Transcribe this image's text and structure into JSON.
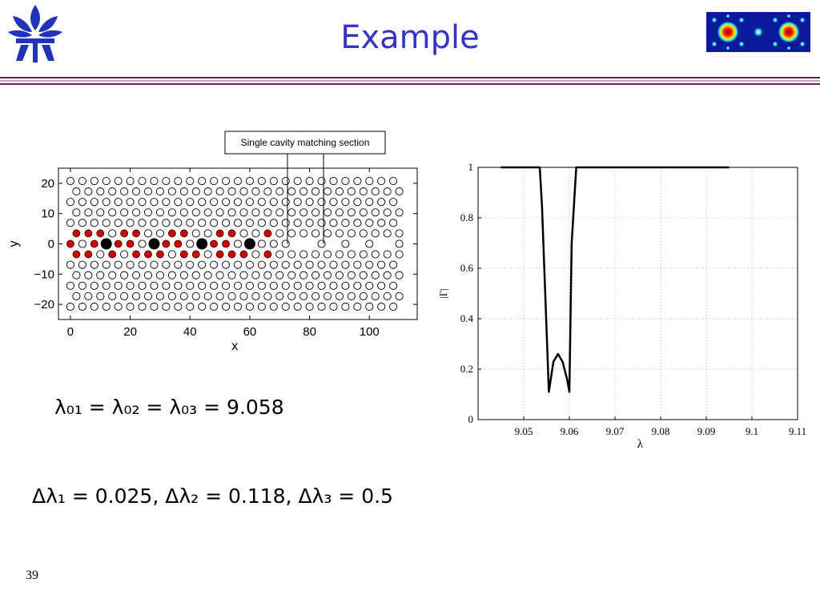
{
  "slide": {
    "title": "Example",
    "page_number": "39",
    "colors": {
      "title": "#3333cc",
      "rule_dark": "#6b1a55",
      "rule_light": "#c9a0c0"
    },
    "logo_icon": "university-emblem-icon",
    "thumbnail_icon": "field-intensity-thumbnail-icon"
  },
  "equations": {
    "eq1": "λ₀₁ = λ₀₂ = λ₀₃ = 9.058",
    "eq2": "Δλ₁ = 0.025, Δλ₂ = 0.118, Δλ₃ = 0.5"
  },
  "chart_data": [
    {
      "type": "scatter",
      "annotation": "Single cavity matching section",
      "xlabel": "x",
      "ylabel": "y",
      "xlim": [
        -4,
        116
      ],
      "ylim": [
        -25,
        25
      ],
      "x_ticks": [
        0,
        20,
        40,
        60,
        80,
        100
      ],
      "y_ticks": [
        20,
        10,
        0,
        -10,
        -20
      ],
      "x_tick_labels": [
        "0",
        "20",
        "40",
        "60",
        "80",
        "100"
      ],
      "y_tick_labels": [
        "20",
        "10",
        "0",
        "−10",
        "−20"
      ],
      "grid": false,
      "series": [
        {
          "marker": "open circles",
          "color": "#000000",
          "points": "hexagonal hole lattice, pitch 4, row spacing 3.46, waveguide row y=0"
        },
        {
          "marker": "filled red circles",
          "color": "#cc0000",
          "points": [
            [
              2,
              3.46
            ],
            [
              6,
              3.46
            ],
            [
              10,
              3.46
            ],
            [
              18,
              3.46
            ],
            [
              22,
              3.46
            ],
            [
              34,
              3.46
            ],
            [
              38,
              3.46
            ],
            [
              50,
              3.46
            ],
            [
              54,
              3.46
            ],
            [
              66,
              3.46
            ],
            [
              0,
              0
            ],
            [
              8,
              0
            ],
            [
              16,
              0
            ],
            [
              20,
              0
            ],
            [
              32,
              0
            ],
            [
              36,
              0
            ],
            [
              48,
              0
            ],
            [
              52,
              0
            ],
            [
              2,
              -3.46
            ],
            [
              6,
              -3.46
            ],
            [
              14,
              -3.46
            ],
            [
              22,
              -3.46
            ],
            [
              26,
              -3.46
            ],
            [
              30,
              -3.46
            ],
            [
              38,
              -3.46
            ],
            [
              42,
              -3.46
            ],
            [
              50,
              -3.46
            ],
            [
              54,
              -3.46
            ],
            [
              58,
              -3.46
            ],
            [
              66,
              -3.46
            ]
          ]
        },
        {
          "marker": "large black circles",
          "color": "#000000",
          "points": [
            [
              12,
              0
            ],
            [
              28,
              0
            ],
            [
              44,
              0
            ],
            [
              60,
              0
            ]
          ]
        }
      ]
    },
    {
      "type": "line",
      "xlabel": "λ",
      "ylabel": "|Γ|",
      "xlim": [
        9.04,
        9.11
      ],
      "ylim": [
        0,
        1
      ],
      "x_ticks": [
        9.05,
        9.06,
        9.07,
        9.08,
        9.09,
        9.1,
        9.11
      ],
      "y_ticks": [
        0,
        0.2,
        0.4,
        0.6,
        0.8,
        1
      ],
      "x_tick_labels": [
        "9.05",
        "9.06",
        "9.07",
        "9.08",
        "9.09",
        "9.1",
        "9.11"
      ],
      "y_tick_labels": [
        "0",
        "0.2",
        "0.4",
        "0.6",
        "0.8",
        "1"
      ],
      "grid": true,
      "x": [
        9.045,
        9.052,
        9.0535,
        9.054,
        9.0545,
        9.0555,
        9.0565,
        9.0575,
        9.0585,
        9.0595,
        9.06,
        9.0605,
        9.0615,
        9.062,
        9.075,
        9.095
      ],
      "values": [
        1.0,
        1.0,
        1.0,
        0.85,
        0.6,
        0.11,
        0.23,
        0.26,
        0.23,
        0.16,
        0.11,
        0.7,
        1.0,
        1.0,
        1.0,
        1.0
      ]
    }
  ]
}
